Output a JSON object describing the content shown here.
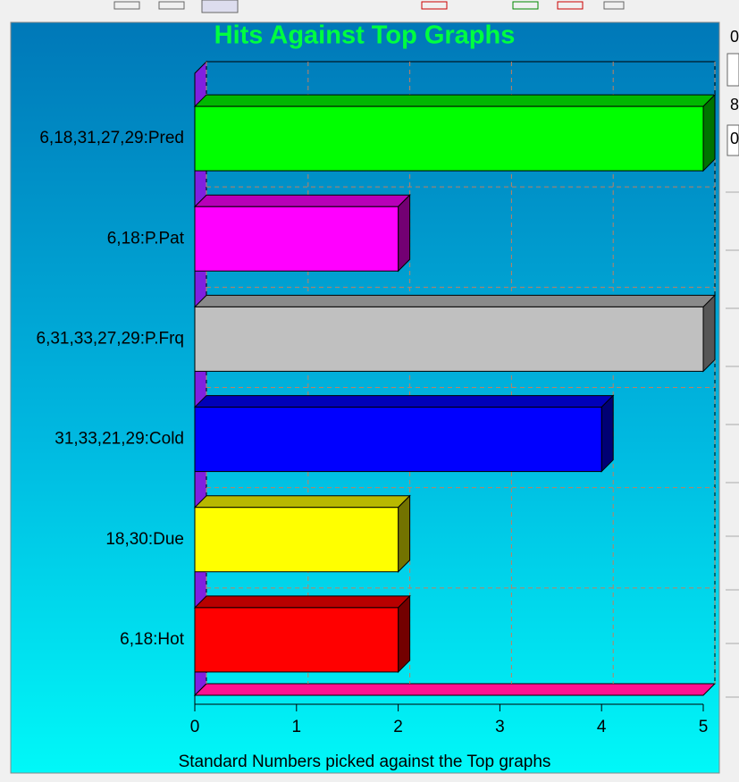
{
  "chart_data": {
    "type": "bar",
    "orientation": "horizontal",
    "title": "Hits Against Top Graphs",
    "x_label": "Standard Numbers picked against the Top graphs",
    "categories": [
      "6,18,31,27,29:Pred",
      "6,18:P.Pat",
      "6,31,33,27,29:P.Frq",
      "31,33,21,29:Cold",
      "18,30:Due",
      "6,18:Hot"
    ],
    "values": [
      5,
      2,
      5,
      4,
      2,
      2
    ],
    "colors": [
      "#00ff00",
      "#ff00ff",
      "#c0c0c0",
      "#0000ff",
      "#ffff00",
      "#ff0000"
    ],
    "xlim": [
      0,
      5
    ],
    "xticks": [
      0,
      1,
      2,
      3,
      4,
      5
    ],
    "grid": true
  },
  "side_panel": {
    "labels": [
      "0",
      "8",
      "0"
    ]
  }
}
